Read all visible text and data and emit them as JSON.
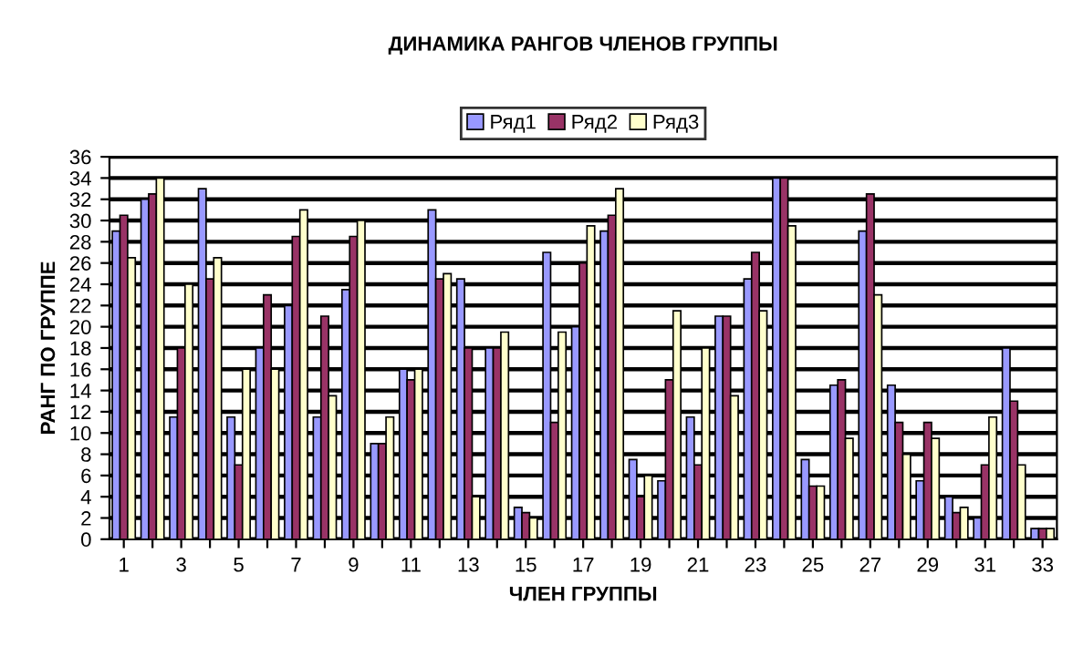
{
  "chart_data": {
    "type": "bar",
    "title": "ДИНАМИКА РАНГОВ ЧЛЕНОВ ГРУППЫ",
    "xlabel": "ЧЛЕН ГРУППЫ",
    "ylabel": "РАНГ ПО ГРУППЕ",
    "categories": [
      "1",
      null,
      "3",
      null,
      "5",
      null,
      "7",
      null,
      "9",
      null,
      "11",
      null,
      "13",
      null,
      "15",
      null,
      "17",
      null,
      "19",
      null,
      "21",
      null,
      "23",
      null,
      "25",
      null,
      "27",
      null,
      "29",
      null,
      "31",
      null,
      "33"
    ],
    "series": [
      {
        "name": "Ряд1",
        "color": "#9999ff",
        "values": [
          29,
          32,
          11.5,
          33,
          11.5,
          18,
          22,
          11.5,
          23.5,
          9,
          16,
          31,
          24.5,
          18,
          3,
          27,
          20,
          29,
          7.5,
          5.5,
          11.5,
          21,
          24.5,
          34,
          7.5,
          14.5,
          29,
          14.5,
          5.5,
          4,
          2,
          18,
          1
        ]
      },
      {
        "name": "Ряд2",
        "color": "#993366",
        "values": [
          30.5,
          32.5,
          18,
          24.5,
          7,
          23,
          28.5,
          21,
          28.5,
          9,
          15,
          24.5,
          18,
          18,
          2.5,
          11,
          26,
          30.5,
          4,
          15,
          7,
          21,
          27,
          34,
          5,
          15,
          32.5,
          11,
          11,
          2.5,
          7,
          13,
          1
        ]
      },
      {
        "name": "Ряд3",
        "color": "#ffffcc",
        "values": [
          26.5,
          34,
          24,
          26.5,
          16,
          16,
          31,
          13.5,
          30,
          11.5,
          16,
          25,
          4,
          19.5,
          2,
          19.5,
          29.5,
          33,
          6,
          21.5,
          18,
          13.5,
          21.5,
          29.5,
          5,
          9.5,
          23,
          8,
          9.5,
          3,
          11.5,
          7,
          1
        ]
      }
    ],
    "ylim": [
      0,
      36
    ],
    "yticks": [
      0,
      2,
      4,
      6,
      8,
      10,
      12,
      14,
      16,
      18,
      20,
      22,
      24,
      26,
      28,
      30,
      32,
      34,
      36
    ],
    "grid": "y",
    "legend": "top"
  }
}
